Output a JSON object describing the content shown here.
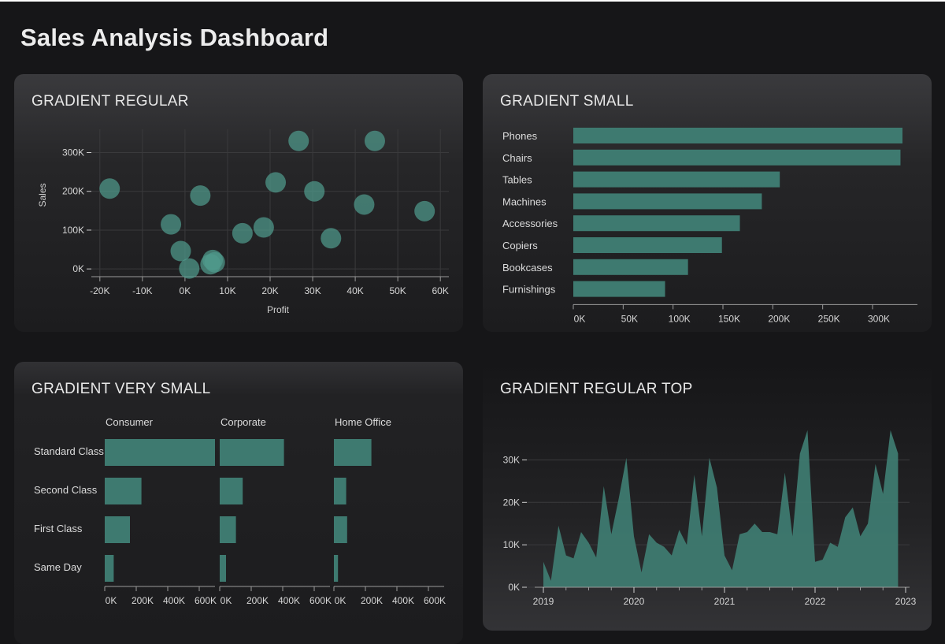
{
  "page": {
    "title": "Sales Analysis Dashboard"
  },
  "colors": {
    "mark": "#4f9a8c",
    "mark_fill": "#3e7a70",
    "axis": "#9a9a9a",
    "grid": "#3a3a3c"
  },
  "charts": {
    "scatter": {
      "title": "GRADIENT REGULAR",
      "chart_data": {
        "type": "scatter",
        "xlabel": "Profit",
        "ylabel": "Sales",
        "xlim": [
          -22000,
          62000
        ],
        "ylim": [
          -20000,
          360000
        ],
        "xticks": [
          -20000,
          -10000,
          0,
          10000,
          20000,
          30000,
          40000,
          50000,
          60000
        ],
        "xtick_labels": [
          "-20K",
          "-10K",
          "0K",
          "10K",
          "20K",
          "30K",
          "40K",
          "50K",
          "60K"
        ],
        "yticks": [
          0,
          100000,
          200000,
          300000
        ],
        "ytick_labels": [
          "0K",
          "100K",
          "200K",
          "300K"
        ],
        "grid": true,
        "points": [
          {
            "x": -17700,
            "y": 207000
          },
          {
            "x": -3300,
            "y": 115000
          },
          {
            "x": -1000,
            "y": 46000
          },
          {
            "x": 1000,
            "y": 1000
          },
          {
            "x": 3600,
            "y": 189000
          },
          {
            "x": 6000,
            "y": 12000
          },
          {
            "x": 6500,
            "y": 23000
          },
          {
            "x": 7000,
            "y": 17000
          },
          {
            "x": 13500,
            "y": 92000
          },
          {
            "x": 18500,
            "y": 107000
          },
          {
            "x": 21300,
            "y": 223000
          },
          {
            "x": 26700,
            "y": 330000
          },
          {
            "x": 30400,
            "y": 200000
          },
          {
            "x": 34300,
            "y": 79000
          },
          {
            "x": 42100,
            "y": 166000
          },
          {
            "x": 44600,
            "y": 330000
          },
          {
            "x": 56300,
            "y": 149000
          }
        ]
      }
    },
    "hbar": {
      "title": "GRADIENT SMALL",
      "chart_data": {
        "type": "bar",
        "orientation": "horizontal",
        "categories": [
          "Phones",
          "Chairs",
          "Tables",
          "Machines",
          "Accessories",
          "Copiers",
          "Bookcases",
          "Furnishings"
        ],
        "values": [
          330000,
          328000,
          207000,
          189000,
          167000,
          149000,
          115000,
          92000
        ],
        "xlim": [
          0,
          345000
        ],
        "xticks": [
          0,
          50000,
          100000,
          150000,
          200000,
          250000,
          300000
        ],
        "xtick_labels": [
          "0K",
          "50K",
          "100K",
          "150K",
          "200K",
          "250K",
          "300K"
        ]
      }
    },
    "facet": {
      "title": "GRADIENT VERY SMALL",
      "chart_data": {
        "type": "bar",
        "orientation": "horizontal",
        "facets": [
          "Consumer",
          "Corporate",
          "Home Office"
        ],
        "categories": [
          "Standard Class",
          "Second Class",
          "First Class",
          "Same Day"
        ],
        "values": [
          [
            700000,
            233000,
            160000,
            57000
          ],
          [
            408000,
            146000,
            103000,
            40000
          ],
          [
            238000,
            78000,
            84000,
            26000
          ]
        ],
        "xlim": [
          0,
          700000
        ],
        "xticks": [
          0,
          200000,
          400000,
          600000
        ],
        "xtick_labels": [
          "0K",
          "200K",
          "400K",
          "600K"
        ]
      }
    },
    "area": {
      "title": "GRADIENT REGULAR TOP",
      "chart_data": {
        "type": "area",
        "x_start": "2019-01",
        "x_end": "2022-12",
        "xticks": [
          "2019",
          "2020",
          "2021",
          "2022",
          "2023"
        ],
        "ylim": [
          0,
          39000
        ],
        "yticks": [
          0,
          10000,
          20000,
          30000
        ],
        "ytick_labels": [
          "0K",
          "10K",
          "20K",
          "30K"
        ],
        "x": [
          "2019-01",
          "2019-02",
          "2019-03",
          "2019-04",
          "2019-05",
          "2019-06",
          "2019-07",
          "2019-08",
          "2019-09",
          "2019-10",
          "2019-11",
          "2019-12",
          "2020-01",
          "2020-02",
          "2020-03",
          "2020-04",
          "2020-05",
          "2020-06",
          "2020-07",
          "2020-08",
          "2020-09",
          "2020-10",
          "2020-11",
          "2020-12",
          "2021-01",
          "2021-02",
          "2021-03",
          "2021-04",
          "2021-05",
          "2021-06",
          "2021-07",
          "2021-08",
          "2021-09",
          "2021-10",
          "2021-11",
          "2021-12",
          "2022-01",
          "2022-02",
          "2022-03",
          "2022-04",
          "2022-05",
          "2022-06",
          "2022-07",
          "2022-08",
          "2022-09",
          "2022-10",
          "2022-11",
          "2022-12"
        ],
        "values": [
          6000,
          1500,
          14500,
          7500,
          6800,
          13000,
          10500,
          7000,
          23800,
          12500,
          21000,
          30500,
          12000,
          3500,
          12500,
          10500,
          9500,
          7500,
          13500,
          10000,
          26500,
          12000,
          30500,
          23500,
          7500,
          4000,
          12500,
          13000,
          15000,
          13000,
          13000,
          12500,
          27000,
          12000,
          31500,
          37000,
          6000,
          6500,
          10500,
          9500,
          16500,
          18800,
          12000,
          15000,
          29000,
          22000,
          37000,
          31500
        ]
      }
    }
  }
}
